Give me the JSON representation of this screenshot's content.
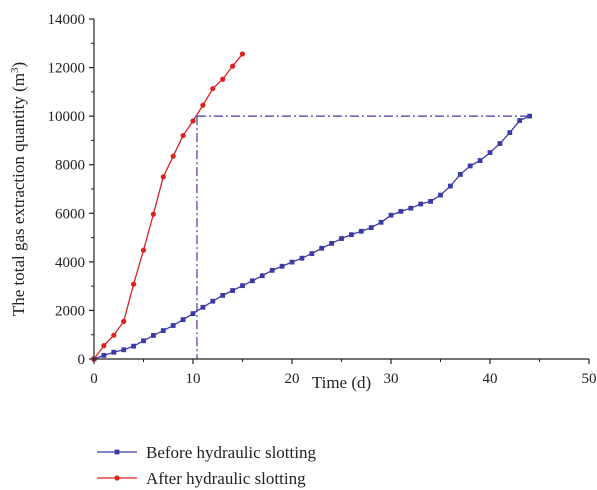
{
  "chart_data": {
    "type": "line",
    "xlabel": "Time (d)",
    "ylabel": "The total gas extraction quantity (m",
    "ylabel_sup": "3",
    "ylabel_close": ")",
    "xlim": [
      0,
      50
    ],
    "ylim": [
      0,
      14000
    ],
    "x_ticks": [
      "0",
      "10",
      "20",
      "30",
      "40",
      "50"
    ],
    "y_ticks": [
      "0",
      "2000",
      "4000",
      "6000",
      "8000",
      "10000",
      "12000",
      "14000"
    ],
    "grid": false,
    "legend_position": "bottom",
    "series": [
      {
        "name": "Before hydraulic slotting",
        "color": "#3b3ba8",
        "marker": "square",
        "x": [
          0,
          1,
          2,
          3,
          4,
          5,
          6,
          7,
          8,
          9,
          10,
          11,
          12,
          13,
          14,
          15,
          16,
          17,
          18,
          19,
          20,
          21,
          22,
          23,
          24,
          25,
          26,
          27,
          28,
          29,
          30,
          31,
          32,
          33,
          34,
          35,
          36,
          37,
          38,
          39,
          40,
          41,
          42,
          43,
          44
        ],
        "y": [
          0,
          150,
          280,
          380,
          530,
          750,
          970,
          1170,
          1380,
          1620,
          1870,
          2130,
          2380,
          2620,
          2820,
          3020,
          3220,
          3430,
          3650,
          3820,
          3990,
          4150,
          4340,
          4560,
          4760,
          4960,
          5120,
          5260,
          5410,
          5630,
          5920,
          6080,
          6210,
          6380,
          6490,
          6750,
          7120,
          7600,
          7950,
          8170,
          8500,
          8870,
          9320,
          9820,
          10000
        ]
      },
      {
        "name": "After hydraulic slotting",
        "color": "#d9231f",
        "marker": "circle",
        "x": [
          0,
          1,
          2,
          3,
          4,
          5,
          6,
          7,
          8,
          9,
          10,
          11,
          12,
          13,
          14,
          15
        ],
        "y": [
          0,
          550,
          980,
          1550,
          3080,
          4480,
          5960,
          7500,
          8350,
          9200,
          9800,
          10450,
          11130,
          11520,
          12060,
          12560
        ]
      }
    ],
    "reference_lines": {
      "x": 10.4,
      "y": 10000,
      "x_end": 44,
      "color": "#3b3ba8",
      "style": "dash-dot"
    }
  }
}
